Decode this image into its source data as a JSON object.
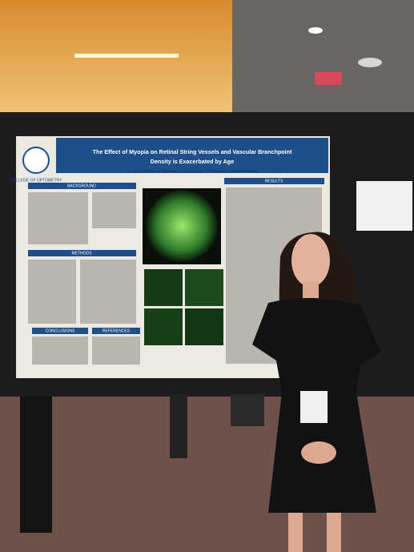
{
  "poster": {
    "title_line1": "The Effect of Myopia on Retinal String Vessels and Vascular Branchpoint",
    "title_line2": "Density is Exacerbated by Age",
    "authors": "C. Lin, A. Tuyedov, V. Basciano, R. Ananduppa, N. Srinivas, A. Benavente-Perez",
    "college": "COLLEGE OF OPTOMETRY",
    "sections": {
      "background": "BACKGROUND",
      "results": "RESULTS",
      "methods": "METHODS",
      "conclusions": "CONCLUSIONS",
      "references": "REFERENCES"
    }
  }
}
